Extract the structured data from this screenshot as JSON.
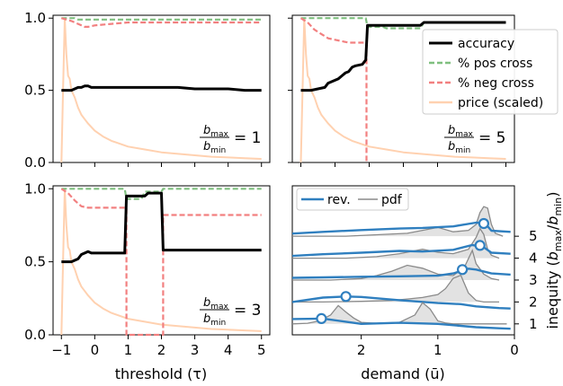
{
  "colors": {
    "accuracy": "#000000",
    "pos_cross": "#7fbf7f",
    "neg_cross": "#f28080",
    "price": "#ffd1b0",
    "rev": "#2f7fbf",
    "pdf": "#8a8a8a",
    "pdf_fill": "#e2e2e2"
  },
  "chart_data": [
    {
      "id": "top-left",
      "type": "line",
      "xlim": [
        -1.25,
        5.25
      ],
      "ylim": [
        0,
        1.02
      ],
      "yticks": [
        "0.0",
        "0.5",
        "1.0"
      ],
      "annotation": {
        "num": "b",
        "num_sub": "max",
        "den": "b",
        "den_sub": "min",
        "eq": "= 1"
      },
      "series": [
        {
          "key": "accuracy",
          "name": "accuracy",
          "x": [
            -1,
            -0.7,
            -0.6,
            -0.5,
            -0.4,
            -0.3,
            -0.2,
            -0.1,
            0,
            0.5,
            1.5,
            2,
            2.5,
            3,
            3.5,
            4,
            4.5,
            5
          ],
          "y": [
            0.5,
            0.5,
            0.51,
            0.52,
            0.52,
            0.53,
            0.53,
            0.52,
            0.52,
            0.52,
            0.52,
            0.52,
            0.52,
            0.51,
            0.51,
            0.51,
            0.5,
            0.5
          ]
        },
        {
          "key": "pos_cross",
          "name": "% pos cross",
          "x": [
            -1,
            -0.6,
            -0.5,
            5
          ],
          "y": [
            1.0,
            1.0,
            0.99,
            0.99
          ]
        },
        {
          "key": "neg_cross",
          "name": "% neg cross",
          "x": [
            -1,
            -0.7,
            -0.5,
            -0.3,
            -0.2,
            0,
            0.5,
            1,
            2,
            3,
            4,
            5
          ],
          "y": [
            1.0,
            0.98,
            0.96,
            0.94,
            0.94,
            0.95,
            0.96,
            0.97,
            0.97,
            0.97,
            0.97,
            0.97
          ]
        },
        {
          "key": "price",
          "name": "price (scaled)",
          "x": [
            -1,
            -0.95,
            -0.9,
            -0.85,
            -0.8,
            -0.75,
            -0.7,
            -0.6,
            -0.5,
            -0.4,
            -0.3,
            -0.2,
            0,
            0.25,
            0.5,
            1,
            1.5,
            2,
            2.5,
            3,
            3.5,
            4,
            4.5,
            5
          ],
          "y": [
            0,
            0.5,
            1.0,
            0.75,
            0.6,
            0.58,
            0.5,
            0.45,
            0.38,
            0.33,
            0.3,
            0.27,
            0.22,
            0.18,
            0.15,
            0.11,
            0.09,
            0.07,
            0.06,
            0.05,
            0.04,
            0.035,
            0.03,
            0.025
          ]
        }
      ]
    },
    {
      "id": "top-right",
      "type": "line",
      "xlim": [
        -1.25,
        5.25
      ],
      "ylim": [
        0,
        1.02
      ],
      "yticks": [],
      "annotation": {
        "num": "b",
        "num_sub": "max",
        "den": "b",
        "den_sub": "min",
        "eq": "= 5"
      },
      "series": [
        {
          "key": "accuracy",
          "name": "accuracy",
          "x": [
            -1,
            -0.7,
            -0.5,
            -0.3,
            -0.2,
            -0.1,
            0,
            0.1,
            0.2,
            0.3,
            0.4,
            0.5,
            0.6,
            0.8,
            0.9,
            0.95,
            1.0,
            1.5,
            2,
            2.5,
            2.6,
            3,
            4,
            5
          ],
          "y": [
            0.5,
            0.5,
            0.51,
            0.52,
            0.55,
            0.56,
            0.57,
            0.58,
            0.6,
            0.62,
            0.63,
            0.66,
            0.67,
            0.68,
            0.71,
            0.95,
            0.95,
            0.95,
            0.95,
            0.95,
            0.97,
            0.97,
            0.97,
            0.97
          ]
        },
        {
          "key": "pos_cross",
          "name": "% pos cross",
          "x": [
            -1,
            0.9,
            0.95,
            1.4,
            1.5,
            2.5,
            2.6,
            5
          ],
          "y": [
            1.0,
            1.0,
            0.94,
            0.94,
            0.93,
            0.93,
            0.97,
            0.97
          ]
        },
        {
          "key": "neg_cross",
          "name": "% neg cross",
          "x": [
            -1,
            -0.8,
            -0.6,
            -0.4,
            -0.2,
            0,
            0.2,
            0.4,
            0.6,
            0.8,
            0.92,
            0.92,
            0.95
          ],
          "y": [
            1.0,
            0.97,
            0.92,
            0.89,
            0.86,
            0.85,
            0.84,
            0.83,
            0.83,
            0.83,
            0.83,
            0.0,
            0.0
          ]
        },
        {
          "key": "price",
          "name": "price (scaled)",
          "x": [
            -1,
            -0.95,
            -0.9,
            -0.85,
            -0.8,
            -0.75,
            -0.7,
            -0.6,
            -0.5,
            -0.4,
            -0.3,
            -0.2,
            0,
            0.25,
            0.5,
            1,
            1.5,
            2,
            2.5,
            3,
            3.5,
            4,
            4.5,
            5
          ],
          "y": [
            0,
            0.5,
            1.0,
            0.75,
            0.6,
            0.58,
            0.5,
            0.45,
            0.38,
            0.33,
            0.3,
            0.27,
            0.22,
            0.18,
            0.15,
            0.11,
            0.09,
            0.07,
            0.06,
            0.05,
            0.04,
            0.035,
            0.03,
            0.025
          ]
        }
      ],
      "legend": {
        "placement": "right",
        "entries": [
          "accuracy",
          "% pos cross",
          "% neg cross",
          "price (scaled)"
        ]
      }
    },
    {
      "id": "bottom-left",
      "type": "line",
      "xlim": [
        -1.25,
        5.25
      ],
      "ylim": [
        0,
        1.02
      ],
      "xticks": [
        "−1",
        "0",
        "1",
        "2",
        "3",
        "4",
        "5"
      ],
      "yticks": [
        "0.0",
        "0.5",
        "1.0"
      ],
      "xlabel": "threshold (τ)",
      "annotation": {
        "num": "b",
        "num_sub": "max",
        "den": "b",
        "den_sub": "min",
        "eq": "= 3"
      },
      "series": [
        {
          "key": "accuracy",
          "name": "accuracy",
          "x": [
            -1,
            -0.7,
            -0.6,
            -0.5,
            -0.4,
            -0.3,
            -0.2,
            -0.1,
            0,
            0.5,
            0.9,
            0.95,
            1.0,
            1.5,
            1.6,
            2.0,
            2.05,
            2.1,
            3,
            4,
            5
          ],
          "y": [
            0.5,
            0.5,
            0.51,
            0.52,
            0.55,
            0.56,
            0.57,
            0.56,
            0.56,
            0.56,
            0.56,
            0.95,
            0.95,
            0.95,
            0.97,
            0.97,
            0.58,
            0.58,
            0.58,
            0.58,
            0.58
          ]
        },
        {
          "key": "pos_cross",
          "name": "% pos cross",
          "x": [
            -1,
            0.9,
            0.95,
            1.4,
            1.5,
            2.0,
            2.05,
            5
          ],
          "y": [
            1.0,
            1.0,
            0.93,
            0.93,
            0.98,
            0.98,
            1.0,
            1.0
          ]
        },
        {
          "key": "neg_cross",
          "name": "% neg cross",
          "x": [
            -1,
            -0.8,
            -0.6,
            -0.4,
            -0.2,
            0,
            0.5,
            0.9,
            0.95,
            0.95,
            1.0,
            1.5,
            1.9,
            2.05,
            2.05,
            2.1,
            5
          ],
          "y": [
            1.0,
            0.97,
            0.92,
            0.88,
            0.87,
            0.87,
            0.87,
            0.87,
            0.87,
            0.0,
            0.0,
            0.0,
            0.0,
            0.0,
            0.82,
            0.82,
            0.82
          ]
        },
        {
          "key": "price",
          "name": "price (scaled)",
          "x": [
            -1,
            -0.95,
            -0.9,
            -0.85,
            -0.8,
            -0.75,
            -0.7,
            -0.6,
            -0.5,
            -0.4,
            -0.3,
            -0.2,
            0,
            0.25,
            0.5,
            1,
            1.5,
            2,
            2.5,
            3,
            3.5,
            4,
            4.5,
            5
          ],
          "y": [
            0,
            0.5,
            1.0,
            0.75,
            0.6,
            0.58,
            0.5,
            0.45,
            0.38,
            0.33,
            0.3,
            0.27,
            0.22,
            0.18,
            0.15,
            0.11,
            0.09,
            0.07,
            0.06,
            0.05,
            0.04,
            0.035,
            0.03,
            0.025
          ]
        }
      ]
    },
    {
      "id": "bottom-right",
      "type": "line",
      "xlabel": "demand (ū)",
      "ylabel": "inequity (b_max/b_min)",
      "xlim": [
        2.9,
        0
      ],
      "ylim": [
        0.5,
        7.3
      ],
      "xticks": [
        "2",
        "1",
        "0"
      ],
      "yticks": [
        "1",
        "2",
        "3",
        "4",
        "5"
      ],
      "legend": {
        "placement": "top-left",
        "entries": [
          "rev.",
          "pdf"
        ]
      },
      "ridges": [
        {
          "inequity": 1,
          "pdf_x": [
            2.9,
            2.7,
            2.55,
            2.4,
            2.3,
            2.2,
            2.1,
            2.0,
            1.8,
            1.5,
            1.3,
            1.2,
            1.1,
            1.0,
            0.9,
            0.8,
            0.6,
            0.3,
            0.1
          ],
          "pdf_h": [
            0,
            0.02,
            0.1,
            0.3,
            0.62,
            0.4,
            0.2,
            0.05,
            0.02,
            0.05,
            0.3,
            0.72,
            0.5,
            0.1,
            0.03,
            0.0,
            0,
            0,
            0
          ],
          "rev_x": [
            2.9,
            2.5,
            2.2,
            2.0,
            1.5,
            1.0,
            0.5,
            0.2,
            0.05
          ],
          "rev_y": [
            0.22,
            0.24,
            0.1,
            0.0,
            0.05,
            0.0,
            -0.15,
            -0.2,
            -0.22
          ],
          "marker": [
            2.52,
            0.24
          ]
        },
        {
          "inequity": 2,
          "pdf_x": [
            2.9,
            2.5,
            2.0,
            1.6,
            1.4,
            1.2,
            1.0,
            0.9,
            0.8,
            0.7,
            0.6,
            0.5,
            0.4,
            0.2
          ],
          "pdf_h": [
            0,
            0,
            0.02,
            0.05,
            0.1,
            0.15,
            0.25,
            0.45,
            0.8,
            0.9,
            0.3,
            0.05,
            0.0,
            0
          ],
          "rev_x": [
            2.9,
            2.5,
            2.2,
            2.0,
            1.5,
            1.0,
            0.7,
            0.5,
            0.2,
            0.05
          ],
          "rev_y": [
            0.0,
            0.2,
            0.25,
            0.23,
            0.08,
            -0.05,
            -0.1,
            -0.2,
            -0.28,
            -0.3
          ],
          "marker": [
            2.2,
            0.25
          ]
        },
        {
          "inequity": 3,
          "pdf_x": [
            2.9,
            2.4,
            2.0,
            1.8,
            1.6,
            1.4,
            1.2,
            1.0,
            0.8,
            0.65,
            0.55,
            0.5,
            0.4,
            0.3,
            0.2
          ],
          "pdf_h": [
            0,
            0,
            0.05,
            0.15,
            0.3,
            0.5,
            0.4,
            0.2,
            0.15,
            0.45,
            1.0,
            0.55,
            0.2,
            0.05,
            0
          ],
          "rev_x": [
            2.9,
            2.5,
            2.0,
            1.5,
            1.0,
            0.8,
            0.6,
            0.5,
            0.3,
            0.05
          ],
          "rev_y": [
            0.1,
            0.12,
            0.15,
            0.17,
            0.2,
            0.3,
            0.52,
            0.48,
            0.3,
            0.25
          ],
          "marker": [
            0.68,
            0.48
          ]
        },
        {
          "inequity": 4,
          "pdf_x": [
            2.9,
            2.2,
            1.8,
            1.5,
            1.2,
            1.0,
            0.8,
            0.6,
            0.5,
            0.45,
            0.4,
            0.35,
            0.3,
            0.2
          ],
          "pdf_h": [
            0,
            0,
            0.05,
            0.15,
            0.3,
            0.2,
            0.15,
            0.3,
            0.7,
            1.0,
            0.8,
            0.3,
            0.1,
            0
          ],
          "rev_x": [
            2.9,
            2.5,
            2.0,
            1.5,
            1.2,
            0.8,
            0.55,
            0.4,
            0.3,
            0.05
          ],
          "rev_y": [
            0.1,
            0.18,
            0.25,
            0.33,
            0.3,
            0.38,
            0.6,
            0.5,
            0.25,
            0.2
          ],
          "marker": [
            0.45,
            0.58
          ]
        },
        {
          "inequity": 5,
          "pdf_x": [
            2.9,
            2.2,
            1.8,
            1.4,
            1.2,
            1.0,
            0.8,
            0.6,
            0.5,
            0.45,
            0.4,
            0.35,
            0.3,
            0.25,
            0.15
          ],
          "pdf_h": [
            0,
            0,
            0.05,
            0.1,
            0.2,
            0.3,
            0.15,
            0.2,
            0.4,
            0.8,
            1.0,
            0.95,
            0.4,
            0.1,
            0
          ],
          "rev_x": [
            2.9,
            2.5,
            2.0,
            1.5,
            1.2,
            0.8,
            0.5,
            0.38,
            0.3,
            0.05
          ],
          "rev_y": [
            0.12,
            0.2,
            0.28,
            0.35,
            0.38,
            0.45,
            0.62,
            0.58,
            0.25,
            0.2
          ],
          "marker": [
            0.4,
            0.58
          ]
        }
      ]
    }
  ]
}
